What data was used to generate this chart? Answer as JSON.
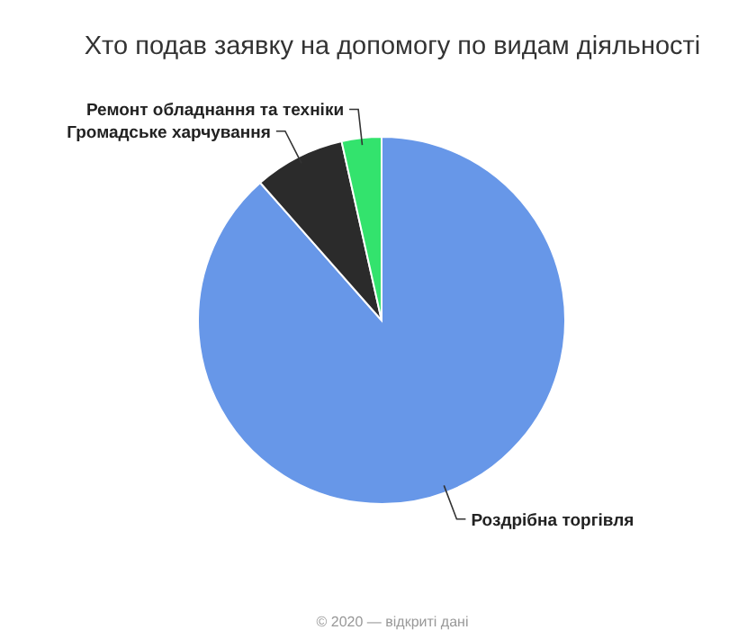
{
  "chart_data": {
    "type": "pie",
    "title": "Хто подав заявку на допомогу по видам діяльності",
    "categories": [
      "Роздрібна торгівля",
      "Громадське харчування",
      "Ремонт обладнання та техніки"
    ],
    "values": [
      88.5,
      8,
      3.5
    ],
    "colors": [
      "#6797e8",
      "#2b2b2b",
      "#33e36d"
    ],
    "annotations": [
      "© 2020 — відкриті дані"
    ],
    "legend": false
  }
}
